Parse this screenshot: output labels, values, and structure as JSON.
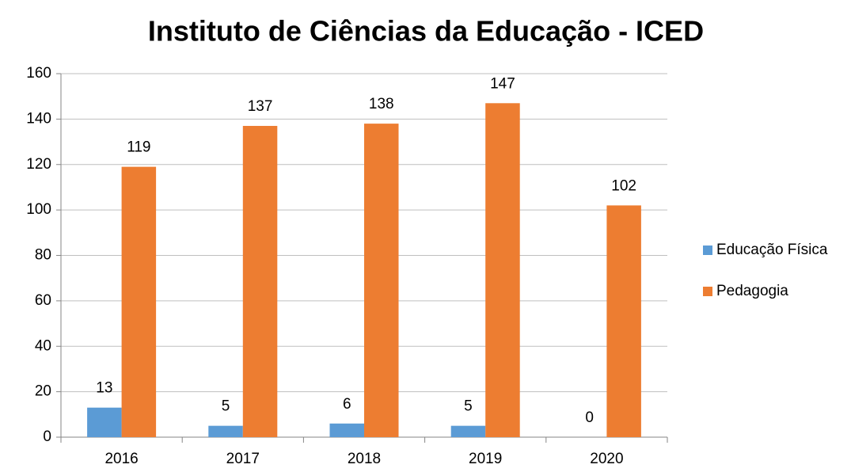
{
  "chart_data": {
    "type": "bar",
    "title": "Instituto de Ciências da Educação - ICED",
    "categories": [
      "2016",
      "2017",
      "2018",
      "2019",
      "2020"
    ],
    "series": [
      {
        "name": "Educação Física",
        "color": "#5b9bd5",
        "values": [
          13,
          5,
          6,
          5,
          0
        ]
      },
      {
        "name": "Pedagogia",
        "color": "#ed7d31",
        "values": [
          119,
          137,
          138,
          147,
          102
        ]
      }
    ],
    "ylim": [
      0,
      160
    ],
    "yticks": [
      0,
      20,
      40,
      60,
      80,
      100,
      120,
      140,
      160
    ],
    "grid": true,
    "legend": "right"
  }
}
